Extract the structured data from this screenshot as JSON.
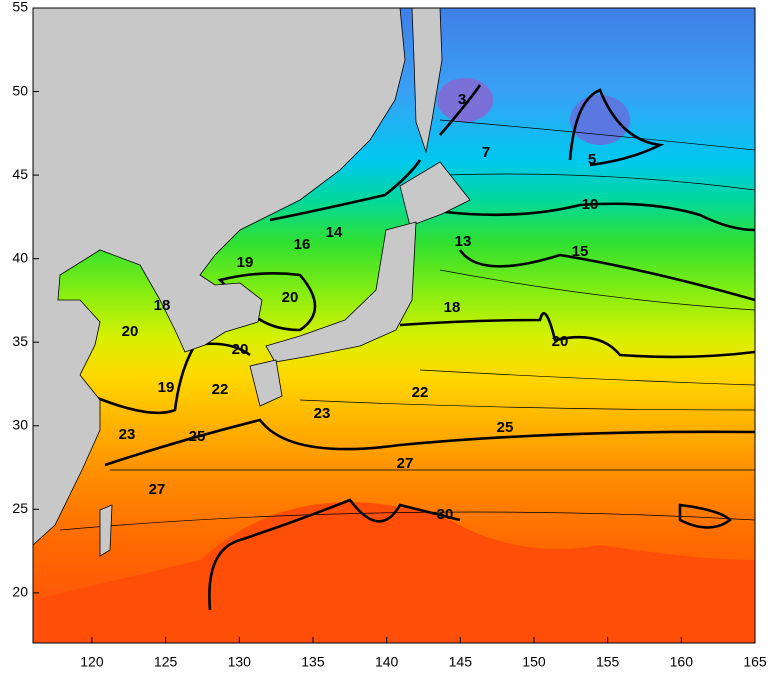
{
  "map": {
    "xlim": [
      116,
      165
    ],
    "ylim": [
      17,
      55
    ],
    "xticks": [
      120,
      125,
      130,
      135,
      140,
      145,
      150,
      155,
      160,
      165
    ],
    "yticks": [
      20,
      25,
      30,
      35,
      40,
      45,
      50,
      55
    ],
    "contour_labels": [
      3,
      7,
      5,
      10,
      14,
      16,
      13,
      15,
      19,
      20,
      18,
      18,
      20,
      20,
      20,
      19,
      22,
      22,
      23,
      23,
      25,
      25,
      27,
      27,
      30
    ]
  }
}
